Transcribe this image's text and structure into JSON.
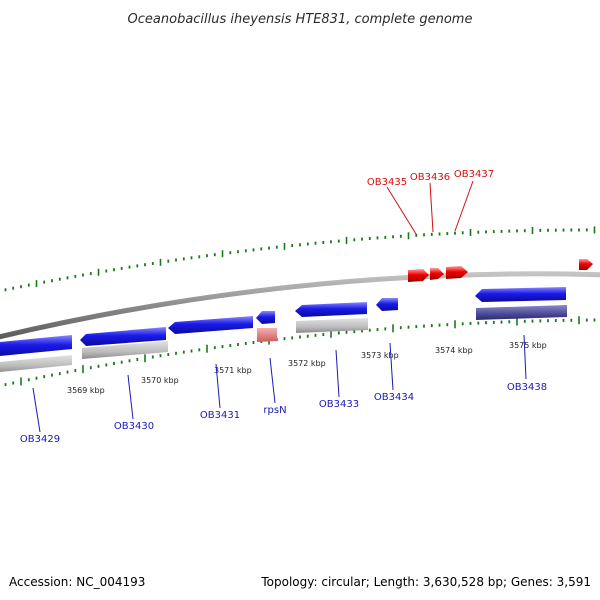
{
  "title": "Oceanobacillus iheyensis HTE831, complete genome",
  "footer": {
    "accession": "Accession: NC_004193",
    "topology": "Topology: circular; Length: 3,630,528 bp; Genes: 3,591"
  },
  "colors": {
    "gene_blue": "#1818e6",
    "gene_red": "#e60000",
    "gene_pink": "#e87878",
    "ruler_green": "#1a7a1a",
    "backbone_gray": "#8a8a8a",
    "label_blue": "#1a1ab0",
    "label_red": "#d01010",
    "track_gray": "#b4b4b4",
    "track_purple": "#4a4a94"
  },
  "kbp_ticks": [
    {
      "label": "3569 kbp"
    },
    {
      "label": "3570 kbp"
    },
    {
      "label": "3571 kbp"
    },
    {
      "label": "3572 kbp"
    },
    {
      "label": "3573 kbp"
    },
    {
      "label": "3574 kbp"
    },
    {
      "label": "3575 kbp"
    }
  ],
  "genes_top": [
    {
      "label": "OB3435",
      "color": "red"
    },
    {
      "label": "OB3436",
      "color": "red"
    },
    {
      "label": "OB3437",
      "color": "red"
    }
  ],
  "genes_bottom": [
    {
      "label": "OB3429",
      "color": "blue"
    },
    {
      "label": "OB3430",
      "color": "blue"
    },
    {
      "label": "OB3431",
      "color": "blue"
    },
    {
      "label": "rpsN",
      "color": "blue"
    },
    {
      "label": "OB3433",
      "color": "blue"
    },
    {
      "label": "OB3434",
      "color": "blue"
    },
    {
      "label": "OB3438",
      "color": "blue"
    }
  ]
}
